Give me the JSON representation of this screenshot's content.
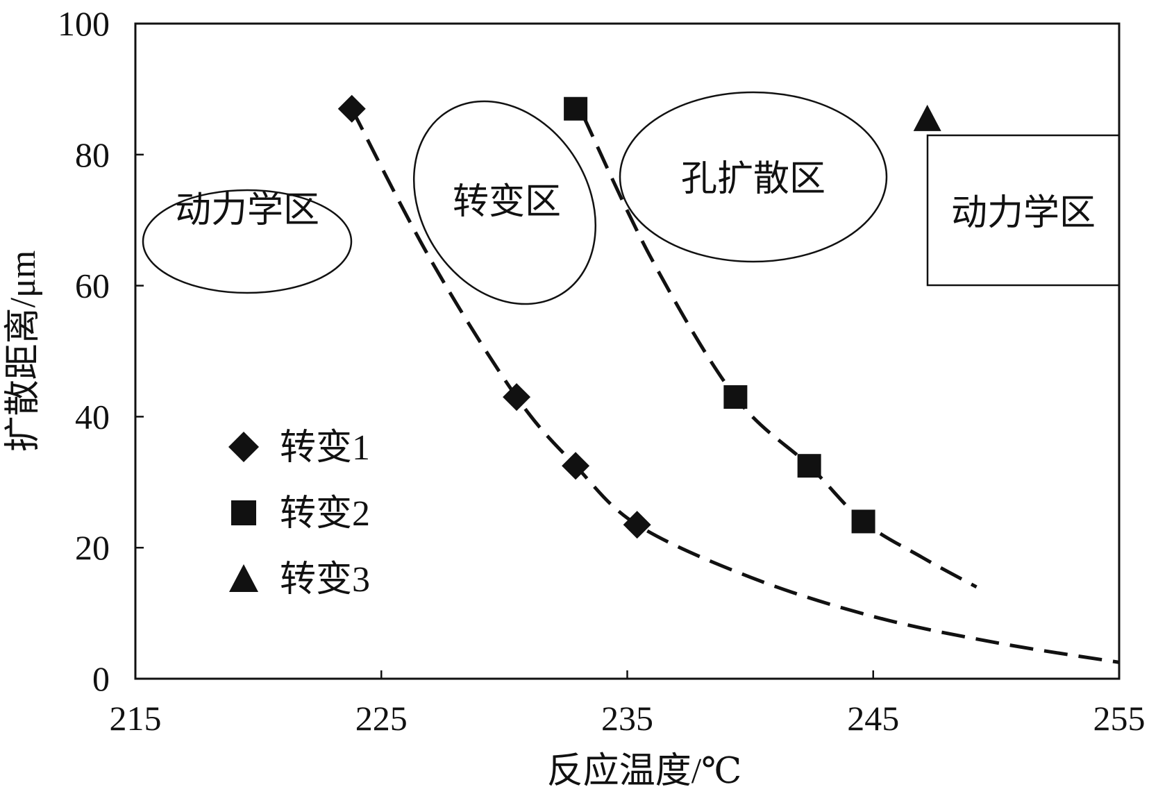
{
  "chart_data": {
    "type": "scatter",
    "xlabel": "反应温度/℃",
    "ylabel": "扩散距离/μm",
    "xlim": [
      215,
      255
    ],
    "ylim": [
      0,
      100
    ],
    "xticks": [
      "215",
      "225",
      "235",
      "245",
      "255"
    ],
    "yticks": [
      "0",
      "20",
      "40",
      "60",
      "80",
      "100"
    ],
    "grid": false,
    "legend_position": "lower-left",
    "series": [
      {
        "name": "转变1",
        "marker": "diamond",
        "x": [
          223.8,
          230.5,
          232.9,
          235.4
        ],
        "y": [
          87,
          43,
          32.5,
          23.5
        ]
      },
      {
        "name": "转变2",
        "marker": "square",
        "x": [
          232.9,
          239.4,
          242.4,
          244.6
        ],
        "y": [
          87,
          43,
          32.5,
          24
        ]
      },
      {
        "name": "转变3",
        "marker": "triangle",
        "x": [
          247.2
        ],
        "y": [
          85.5
        ]
      }
    ],
    "fit_curves": [
      {
        "style": "dashed",
        "x": [
          223.8,
          227,
          230.5,
          232.9,
          235.4,
          240,
          245,
          250,
          255
        ],
        "y": [
          87,
          64,
          43,
          32.5,
          23.5,
          15.5,
          9.5,
          5.5,
          2.5
        ]
      },
      {
        "style": "dashed",
        "x": [
          233.2,
          236,
          239.4,
          242.4,
          244.6,
          247,
          249.2
        ],
        "y": [
          86,
          64,
          43,
          32.5,
          24,
          18.5,
          14
        ]
      }
    ],
    "zones": [
      "动力学区",
      "转变区",
      "孔扩散区",
      "动力学区"
    ],
    "color": "#111111"
  }
}
